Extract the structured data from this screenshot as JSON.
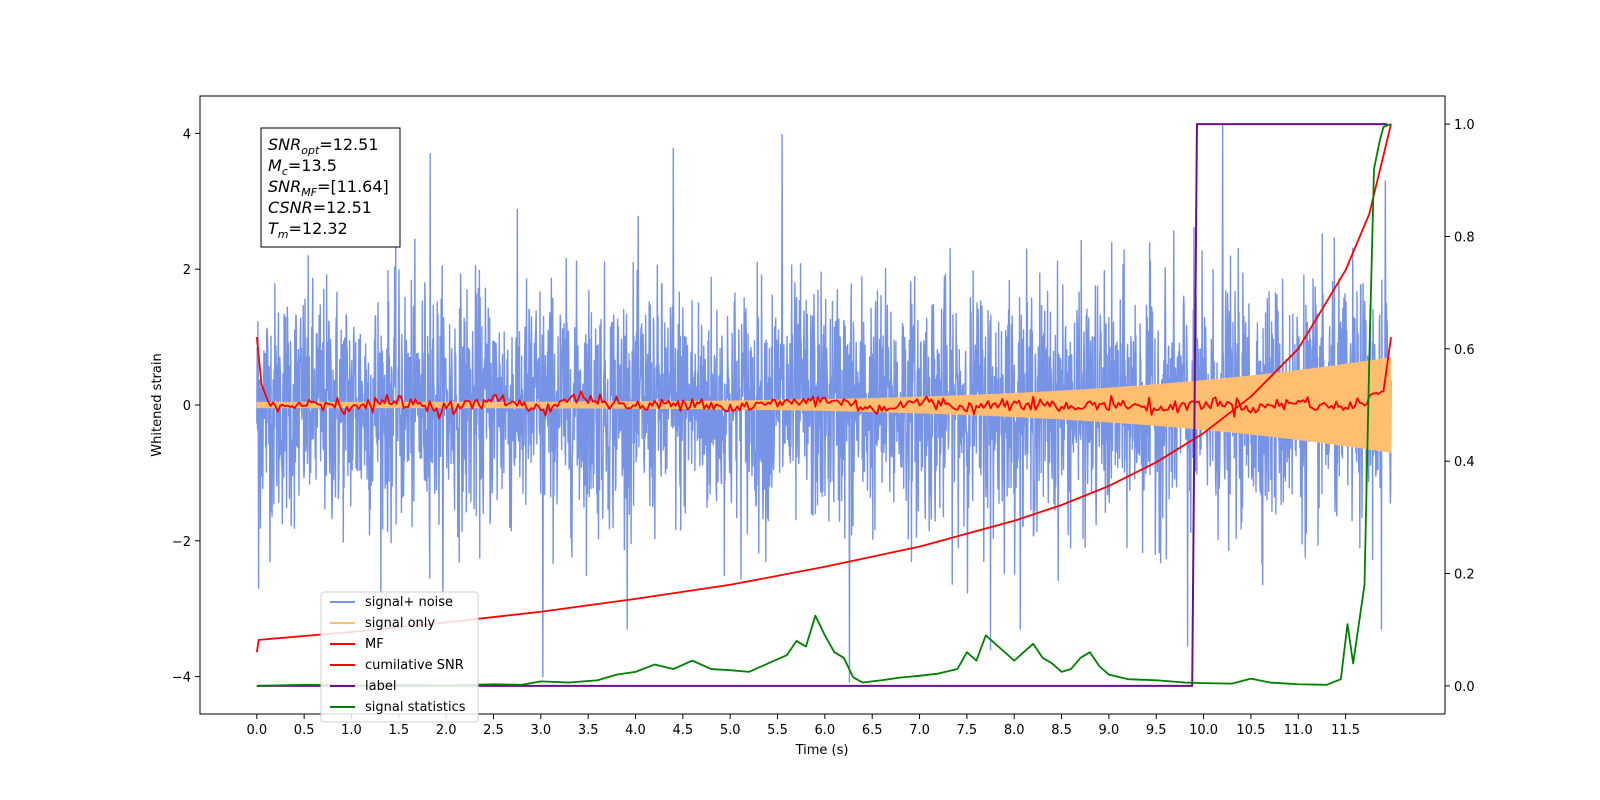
{
  "chart_data": {
    "type": "line",
    "xlabel": "Time (s)",
    "ylabel": "Whitened strain",
    "xlim": [
      -0.6,
      12.55
    ],
    "ylim": [
      -4.55,
      4.55
    ],
    "y2lim": [
      -0.05,
      1.05
    ],
    "x_ticks": [
      0.0,
      0.5,
      1.0,
      1.5,
      2.0,
      2.5,
      3.0,
      3.5,
      4.0,
      4.5,
      5.0,
      5.5,
      6.0,
      6.5,
      7.0,
      7.5,
      8.0,
      8.5,
      9.0,
      9.5,
      10.0,
      10.5,
      11.0,
      11.5
    ],
    "x_tick_labels": [
      "0.0",
      "0.5",
      "1.0",
      "1.5",
      "2.0",
      "2.5",
      "3.0",
      "3.5",
      "4.0",
      "4.5",
      "5.0",
      "5.5",
      "6.0",
      "6.5",
      "7.0",
      "7.5",
      "8.0",
      "8.5",
      "9.0",
      "9.5",
      "10.0",
      "10.5",
      "11.0",
      "11.5"
    ],
    "y_ticks": [
      -4,
      -2,
      0,
      2,
      4
    ],
    "y_tick_labels": [
      "−4",
      "−2",
      "0",
      "2",
      "4"
    ],
    "y2_ticks": [
      0.0,
      0.2,
      0.4,
      0.6,
      0.8,
      1.0
    ],
    "y2_tick_labels": [
      "0.0",
      "0.2",
      "0.4",
      "0.6",
      "0.8",
      "1.0"
    ],
    "grid": false,
    "legend_position": "lower-left",
    "info_box": {
      "lines": [
        {
          "base": "SNR",
          "sub": "opt",
          "value": "=12.51"
        },
        {
          "base": "M",
          "sub": "c",
          "value": "=13.5"
        },
        {
          "base": "SNR",
          "sub": "MF",
          "value": "=[11.64]"
        },
        {
          "base": "CSNR",
          "sub": "",
          "value": "=12.51"
        },
        {
          "base": "T",
          "sub": "m",
          "value": "=12.32"
        }
      ]
    },
    "series": [
      {
        "name": "signal+ noise",
        "axis": "left",
        "color": "#7793e6",
        "style": "dense-noise",
        "x_range": [
          0.0,
          11.98
        ],
        "center": 0.0,
        "typical_amplitude": 1.6,
        "peak_values": [
          [
            5.55,
            3.98
          ],
          [
            10.2,
            4.12
          ],
          [
            1.83,
            3.7
          ],
          [
            4.4,
            3.78
          ],
          [
            6.26,
            -4.08
          ],
          [
            9.83,
            -3.55
          ],
          [
            0.02,
            -2.7
          ],
          [
            3.02,
            -4.0
          ],
          [
            7.75,
            -3.6
          ],
          [
            11.88,
            -3.3
          ],
          [
            11.92,
            3.3
          ]
        ]
      },
      {
        "name": "signal only",
        "axis": "left",
        "color": "#ffbf70",
        "style": "chirp",
        "x_range": [
          0.0,
          11.98
        ],
        "amplitude_start": 0.04,
        "amplitude_end": 0.7
      },
      {
        "name": "MF",
        "axis": "left",
        "color": "#ff0000",
        "style": "noisy-flat",
        "points": [
          [
            0.0,
            1.0
          ],
          [
            0.05,
            0.3
          ],
          [
            0.12,
            0.05
          ],
          [
            0.3,
            -0.05
          ],
          [
            0.6,
            0.05
          ],
          [
            1.0,
            -0.03
          ],
          [
            1.5,
            0.06
          ],
          [
            2.0,
            -0.05
          ],
          [
            2.6,
            0.08
          ],
          [
            3.0,
            -0.06
          ],
          [
            3.4,
            0.12
          ],
          [
            4.0,
            -0.04
          ],
          [
            4.6,
            0.06
          ],
          [
            5.0,
            -0.05
          ],
          [
            5.6,
            0.04
          ],
          [
            6.0,
            0.08
          ],
          [
            6.6,
            -0.06
          ],
          [
            7.0,
            0.05
          ],
          [
            7.6,
            -0.04
          ],
          [
            8.0,
            0.06
          ],
          [
            8.6,
            -0.05
          ],
          [
            9.0,
            0.03
          ],
          [
            9.6,
            -0.06
          ],
          [
            10.0,
            0.04
          ],
          [
            10.6,
            -0.04
          ],
          [
            11.0,
            0.05
          ],
          [
            11.5,
            -0.05
          ],
          [
            11.9,
            0.2
          ],
          [
            11.98,
            1.0
          ]
        ]
      },
      {
        "name": "cumilative SNR",
        "axis": "right",
        "color": "#ff0000",
        "style": "curve",
        "points": [
          [
            0.0,
            0.06
          ],
          [
            0.02,
            0.082
          ],
          [
            1.0,
            0.096
          ],
          [
            2.0,
            0.113
          ],
          [
            3.0,
            0.132
          ],
          [
            4.0,
            0.155
          ],
          [
            5.0,
            0.18
          ],
          [
            6.0,
            0.212
          ],
          [
            7.0,
            0.248
          ],
          [
            8.0,
            0.294
          ],
          [
            8.5,
            0.322
          ],
          [
            9.0,
            0.356
          ],
          [
            9.5,
            0.398
          ],
          [
            10.0,
            0.45
          ],
          [
            10.5,
            0.515
          ],
          [
            11.0,
            0.6
          ],
          [
            11.5,
            0.74
          ],
          [
            11.75,
            0.84
          ],
          [
            11.98,
            1.0
          ]
        ]
      },
      {
        "name": "label",
        "axis": "right",
        "color": "#6a0f8e",
        "style": "step",
        "points": [
          [
            0.0,
            0.0
          ],
          [
            9.88,
            0.0
          ],
          [
            9.93,
            1.0
          ],
          [
            11.94,
            1.0
          ]
        ]
      },
      {
        "name": "signal statistics",
        "axis": "right",
        "color": "#008000",
        "style": "line",
        "points": [
          [
            0.0,
            0.0
          ],
          [
            0.5,
            0.002
          ],
          [
            1.0,
            0.001
          ],
          [
            1.5,
            0.002
          ],
          [
            2.0,
            0.001
          ],
          [
            2.5,
            0.003
          ],
          [
            2.8,
            0.002
          ],
          [
            3.0,
            0.008
          ],
          [
            3.3,
            0.006
          ],
          [
            3.6,
            0.01
          ],
          [
            3.8,
            0.02
          ],
          [
            4.0,
            0.025
          ],
          [
            4.2,
            0.038
          ],
          [
            4.4,
            0.03
          ],
          [
            4.6,
            0.045
          ],
          [
            4.8,
            0.03
          ],
          [
            5.0,
            0.028
          ],
          [
            5.2,
            0.025
          ],
          [
            5.4,
            0.04
          ],
          [
            5.6,
            0.055
          ],
          [
            5.7,
            0.08
          ],
          [
            5.8,
            0.07
          ],
          [
            5.9,
            0.125
          ],
          [
            6.0,
            0.09
          ],
          [
            6.1,
            0.06
          ],
          [
            6.2,
            0.05
          ],
          [
            6.3,
            0.015
          ],
          [
            6.4,
            0.006
          ],
          [
            6.6,
            0.01
          ],
          [
            6.8,
            0.015
          ],
          [
            7.0,
            0.018
          ],
          [
            7.2,
            0.022
          ],
          [
            7.4,
            0.03
          ],
          [
            7.5,
            0.06
          ],
          [
            7.6,
            0.045
          ],
          [
            7.7,
            0.09
          ],
          [
            7.8,
            0.075
          ],
          [
            8.0,
            0.045
          ],
          [
            8.1,
            0.06
          ],
          [
            8.2,
            0.075
          ],
          [
            8.3,
            0.05
          ],
          [
            8.4,
            0.04
          ],
          [
            8.5,
            0.025
          ],
          [
            8.6,
            0.03
          ],
          [
            8.7,
            0.05
          ],
          [
            8.8,
            0.06
          ],
          [
            8.9,
            0.035
          ],
          [
            9.0,
            0.02
          ],
          [
            9.2,
            0.012
          ],
          [
            9.5,
            0.01
          ],
          [
            9.8,
            0.006
          ],
          [
            10.0,
            0.005
          ],
          [
            10.3,
            0.004
          ],
          [
            10.5,
            0.013
          ],
          [
            10.7,
            0.006
          ],
          [
            11.0,
            0.003
          ],
          [
            11.3,
            0.002
          ],
          [
            11.45,
            0.012
          ],
          [
            11.52,
            0.11
          ],
          [
            11.58,
            0.04
          ],
          [
            11.7,
            0.18
          ],
          [
            11.75,
            0.58
          ],
          [
            11.8,
            0.92
          ],
          [
            11.86,
            0.97
          ],
          [
            11.9,
            0.995
          ],
          [
            11.98,
            1.0
          ]
        ]
      }
    ]
  }
}
